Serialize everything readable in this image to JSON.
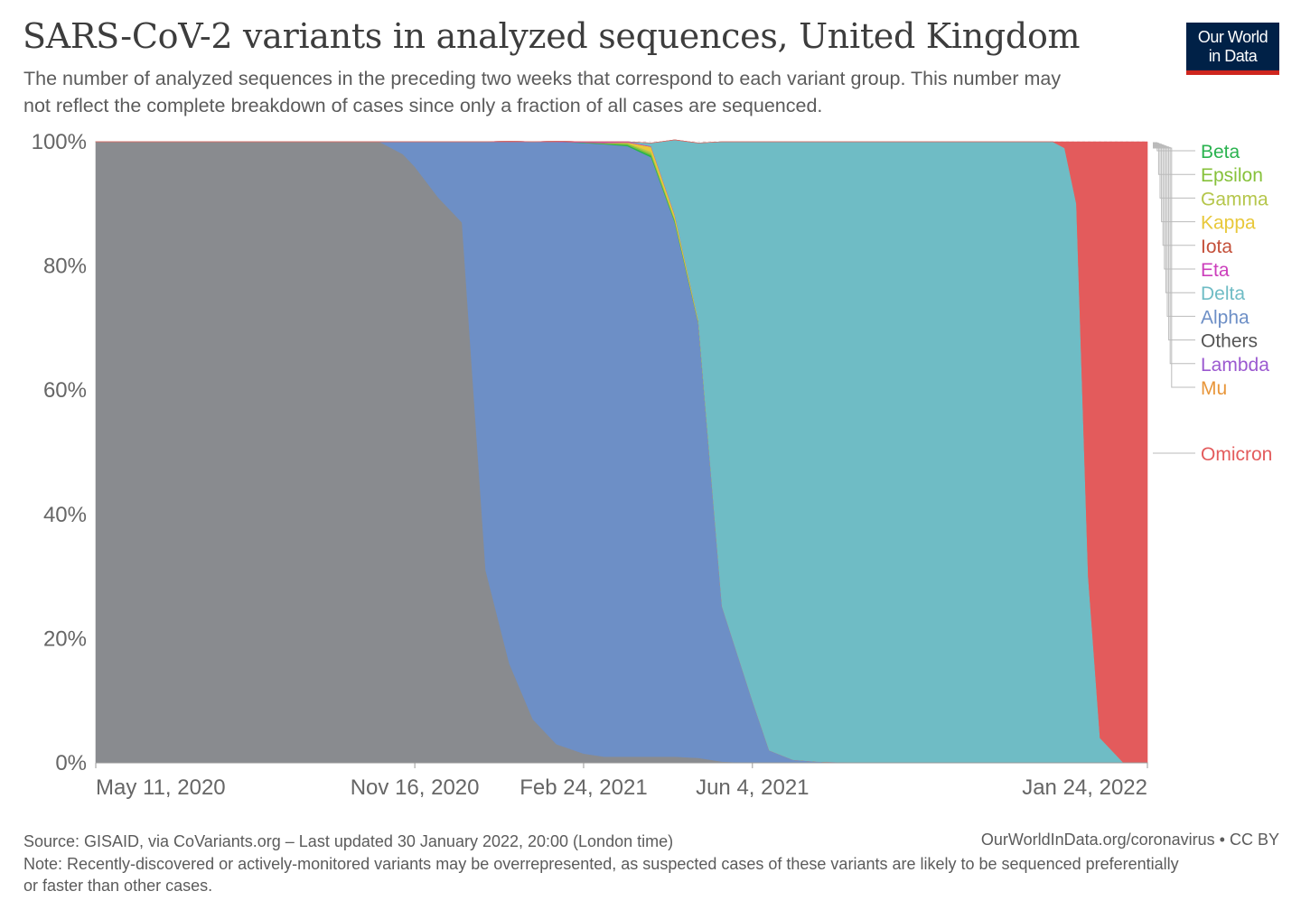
{
  "header": {
    "title": "SARS-CoV-2 variants in analyzed sequences, United Kingdom",
    "subtitle": "The number of analyzed sequences in the preceding two weeks that correspond to each variant group. This number may not reflect the complete breakdown of cases since only a fraction of all cases are sequenced.",
    "logo_line1": "Our World",
    "logo_line2": "in Data"
  },
  "footer": {
    "source": "Source: GISAID, via CoVariants.org – Last updated 30 January 2022, 20:00 (London time)",
    "url": "OurWorldInData.org/coronavirus • CC BY",
    "note": "Note: Recently-discovered or actively-monitored variants may be overrepresented, as suspected cases of these variants are likely to be sequenced preferentially or faster than other cases."
  },
  "chart_data": {
    "type": "area",
    "stacked": true,
    "normalized": true,
    "x_start": "May 11, 2020",
    "x_end": "Jan 24, 2022",
    "x": [
      "2020-05-11",
      "2020-06-08",
      "2020-07-06",
      "2020-08-03",
      "2020-08-31",
      "2020-09-28",
      "2020-10-26",
      "2020-11-09",
      "2020-11-16",
      "2020-11-30",
      "2020-12-14",
      "2020-12-28",
      "2021-01-11",
      "2021-01-25",
      "2021-02-08",
      "2021-02-24",
      "2021-03-08",
      "2021-03-22",
      "2021-04-05",
      "2021-04-19",
      "2021-05-03",
      "2021-05-17",
      "2021-06-04",
      "2021-06-14",
      "2021-06-28",
      "2021-07-12",
      "2021-08-09",
      "2021-10-04",
      "2021-11-29",
      "2021-12-06",
      "2021-12-13",
      "2021-12-20",
      "2021-12-27",
      "2022-01-10",
      "2022-01-24"
    ],
    "series": [
      {
        "name": "Others",
        "color": "#898b8f",
        "values": [
          100,
          100,
          100,
          100,
          100,
          100,
          100,
          98,
          96,
          91,
          87,
          31,
          16,
          7,
          3,
          1.5,
          1,
          1,
          1,
          1,
          0.8,
          0.2,
          0,
          0,
          0,
          0,
          0,
          0,
          0,
          0,
          0,
          0,
          0,
          0,
          0
        ]
      },
      {
        "name": "Alpha",
        "color": "#6d8fc6",
        "values": [
          0,
          0,
          0,
          0,
          0,
          0,
          0,
          2,
          4,
          9,
          13,
          69,
          84,
          93,
          97,
          98.3,
          98.6,
          98.3,
          96.5,
          86,
          70,
          25,
          10,
          2,
          0.5,
          0.2,
          0,
          0,
          0,
          0,
          0,
          0,
          0,
          0,
          0
        ]
      },
      {
        "name": "Beta",
        "color": "#2ab34f",
        "values": [
          0,
          0,
          0,
          0,
          0,
          0,
          0,
          0,
          0,
          0,
          0,
          0,
          0,
          0,
          0,
          0.1,
          0.1,
          0.2,
          0.3,
          0.2,
          0.1,
          0,
          0,
          0,
          0,
          0,
          0,
          0,
          0,
          0,
          0,
          0,
          0,
          0,
          0
        ]
      },
      {
        "name": "Epsilon",
        "color": "#86c13a",
        "values": [
          0,
          0,
          0,
          0,
          0,
          0,
          0,
          0,
          0,
          0,
          0,
          0,
          0,
          0,
          0,
          0,
          0.1,
          0.2,
          0.3,
          0.2,
          0,
          0,
          0,
          0,
          0,
          0,
          0,
          0,
          0,
          0,
          0,
          0,
          0,
          0,
          0
        ]
      },
      {
        "name": "Gamma",
        "color": "#b5c64b",
        "values": [
          0,
          0,
          0,
          0,
          0,
          0,
          0,
          0,
          0,
          0,
          0,
          0,
          0,
          0,
          0,
          0,
          0,
          0.1,
          0.3,
          0.2,
          0.1,
          0,
          0,
          0,
          0,
          0,
          0,
          0,
          0,
          0,
          0,
          0,
          0,
          0,
          0
        ]
      },
      {
        "name": "Kappa",
        "color": "#e8c83a",
        "values": [
          0,
          0,
          0,
          0,
          0,
          0,
          0,
          0,
          0,
          0,
          0,
          0,
          0,
          0,
          0,
          0,
          0,
          0.1,
          0.8,
          0.6,
          0.3,
          0,
          0,
          0,
          0,
          0,
          0,
          0,
          0,
          0,
          0,
          0,
          0,
          0,
          0
        ]
      },
      {
        "name": "Iota",
        "color": "#c4503a",
        "values": [
          0,
          0,
          0,
          0,
          0,
          0,
          0,
          0,
          0,
          0,
          0,
          0,
          0,
          0,
          0,
          0,
          0,
          0,
          0,
          0,
          0,
          0,
          0,
          0,
          0,
          0,
          0,
          0,
          0,
          0,
          0,
          0,
          0,
          0,
          0
        ]
      },
      {
        "name": "Eta",
        "color": "#cc3fbc",
        "values": [
          0,
          0,
          0,
          0,
          0,
          0,
          0,
          0,
          0,
          0,
          0,
          0,
          0.1,
          0,
          0.1,
          0.1,
          0.2,
          0.1,
          0.1,
          0.1,
          0,
          0,
          0,
          0,
          0,
          0,
          0,
          0,
          0,
          0,
          0,
          0,
          0,
          0,
          0
        ]
      },
      {
        "name": "Delta",
        "color": "#6fbcc5",
        "values": [
          0,
          0,
          0,
          0,
          0,
          0,
          0,
          0,
          0,
          0,
          0,
          0,
          0,
          0,
          0,
          0,
          0,
          0,
          0.5,
          12,
          28.5,
          74.8,
          90,
          98,
          99.5,
          99.8,
          100,
          100,
          100,
          99,
          90,
          30,
          4,
          0,
          0
        ]
      },
      {
        "name": "Lambda",
        "color": "#9b59d0",
        "values": [
          0,
          0,
          0,
          0,
          0,
          0,
          0,
          0,
          0,
          0,
          0,
          0,
          0,
          0,
          0,
          0,
          0,
          0,
          0,
          0,
          0,
          0,
          0,
          0,
          0,
          0,
          0,
          0,
          0,
          0,
          0,
          0,
          0,
          0,
          0
        ]
      },
      {
        "name": "Mu",
        "color": "#e8963a",
        "values": [
          0,
          0,
          0,
          0,
          0,
          0,
          0,
          0,
          0,
          0,
          0,
          0,
          0,
          0,
          0,
          0,
          0,
          0,
          0,
          0,
          0,
          0,
          0,
          0,
          0,
          0,
          0,
          0,
          0,
          0,
          0,
          0,
          0,
          0,
          0
        ]
      },
      {
        "name": "Omicron",
        "color": "#e35b5c",
        "values": [
          0,
          0,
          0,
          0,
          0,
          0,
          0,
          0,
          0,
          0,
          0,
          0,
          0,
          0,
          0,
          0,
          0,
          0,
          0,
          0,
          0,
          0,
          0,
          0,
          0,
          0,
          0,
          0,
          0,
          1,
          10,
          70,
          96,
          100,
          100
        ]
      }
    ],
    "legend_order": [
      "Beta",
      "Epsilon",
      "Gamma",
      "Kappa",
      "Iota",
      "Eta",
      "Delta",
      "Alpha",
      "Others",
      "Lambda",
      "Mu",
      "Omicron"
    ],
    "x_ticks": [
      {
        "date": "2020-05-11",
        "label": "May 11, 2020"
      },
      {
        "date": "2020-11-16",
        "label": "Nov 16, 2020"
      },
      {
        "date": "2021-02-24",
        "label": "Feb 24, 2021"
      },
      {
        "date": "2021-06-04",
        "label": "Jun 4, 2021"
      },
      {
        "date": "2022-01-24",
        "label": "Jan 24, 2022"
      }
    ],
    "y_ticks": [
      0,
      20,
      40,
      60,
      80,
      100
    ],
    "y_tick_labels": [
      "0%",
      "20%",
      "40%",
      "60%",
      "80%",
      "100%"
    ],
    "ylim": [
      0,
      100
    ],
    "grid": true,
    "legend_position": "right"
  }
}
